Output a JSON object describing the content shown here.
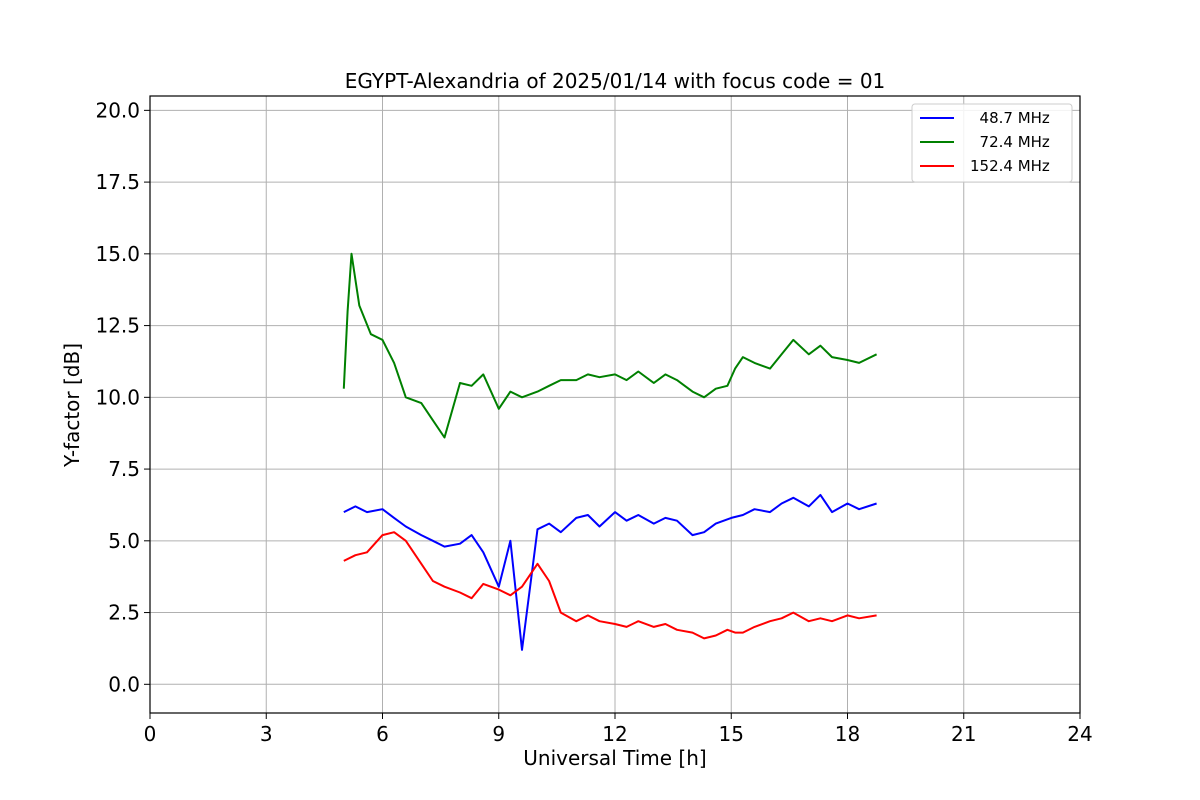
{
  "chart_data": {
    "type": "line",
    "title": "EGYPT-Alexandria of 2025/01/14 with focus code = 01",
    "xlabel": "Universal Time [h]",
    "ylabel": "Y-factor [dB]",
    "xlim": [
      0,
      24
    ],
    "ylim": [
      -1.0,
      20.5
    ],
    "xticks": [
      0,
      3,
      6,
      9,
      12,
      15,
      18,
      21,
      24
    ],
    "xtick_labels": [
      "0",
      "3",
      "6",
      "9",
      "12",
      "15",
      "18",
      "21",
      "24"
    ],
    "yticks": [
      0,
      2.5,
      5,
      7.5,
      10,
      12.5,
      15,
      17.5,
      20
    ],
    "ytick_labels": [
      "0.0",
      "2.5",
      "5.0",
      "7.5",
      "10.0",
      "12.5",
      "15.0",
      "17.5",
      "20.0"
    ],
    "grid": true,
    "legend_position": "top-right",
    "series": [
      {
        "name": "  48.7 MHz",
        "color": "#0000ff",
        "x": [
          5.0,
          5.3,
          5.6,
          6.0,
          6.3,
          6.6,
          7.0,
          7.3,
          7.6,
          8.0,
          8.3,
          8.6,
          9.0,
          9.3,
          9.6,
          10.0,
          10.3,
          10.6,
          11.0,
          11.3,
          11.6,
          12.0,
          12.3,
          12.6,
          13.0,
          13.3,
          13.6,
          14.0,
          14.3,
          14.6,
          15.0,
          15.3,
          15.6,
          16.0,
          16.3,
          16.6,
          17.0,
          17.3,
          17.6,
          18.0,
          18.3,
          18.75
        ],
        "y": [
          6.0,
          6.2,
          6.0,
          6.1,
          5.8,
          5.5,
          5.2,
          5.0,
          4.8,
          4.9,
          5.2,
          4.6,
          3.4,
          5.0,
          1.2,
          5.4,
          5.6,
          5.3,
          5.8,
          5.9,
          5.5,
          6.0,
          5.7,
          5.9,
          5.6,
          5.8,
          5.7,
          5.2,
          5.3,
          5.6,
          5.8,
          5.9,
          6.1,
          6.0,
          6.3,
          6.5,
          6.2,
          6.6,
          6.0,
          6.3,
          6.1,
          6.3
        ]
      },
      {
        "name": "  72.4 MHz",
        "color": "#008000",
        "x": [
          5.0,
          5.1,
          5.2,
          5.4,
          5.7,
          6.0,
          6.3,
          6.6,
          7.0,
          7.3,
          7.6,
          8.0,
          8.3,
          8.6,
          9.0,
          9.3,
          9.6,
          10.0,
          10.3,
          10.6,
          11.0,
          11.3,
          11.6,
          12.0,
          12.3,
          12.6,
          13.0,
          13.3,
          13.6,
          14.0,
          14.3,
          14.6,
          14.9,
          15.1,
          15.3,
          15.6,
          16.0,
          16.3,
          16.6,
          17.0,
          17.3,
          17.6,
          18.0,
          18.3,
          18.75
        ],
        "y": [
          10.3,
          13.0,
          15.0,
          13.2,
          12.2,
          12.0,
          11.2,
          10.0,
          9.8,
          9.2,
          8.6,
          10.5,
          10.4,
          10.8,
          9.6,
          10.2,
          10.0,
          10.2,
          10.4,
          10.6,
          10.6,
          10.8,
          10.7,
          10.8,
          10.6,
          10.9,
          10.5,
          10.8,
          10.6,
          10.2,
          10.0,
          10.3,
          10.4,
          11.0,
          11.4,
          11.2,
          11.0,
          11.5,
          12.0,
          11.5,
          11.8,
          11.4,
          11.3,
          11.2,
          11.5
        ]
      },
      {
        "name": "152.4 MHz",
        "color": "#ff0000",
        "x": [
          5.0,
          5.3,
          5.6,
          6.0,
          6.3,
          6.6,
          7.0,
          7.3,
          7.6,
          8.0,
          8.3,
          8.6,
          9.0,
          9.3,
          9.6,
          10.0,
          10.3,
          10.6,
          11.0,
          11.3,
          11.6,
          12.0,
          12.3,
          12.6,
          13.0,
          13.3,
          13.6,
          14.0,
          14.3,
          14.6,
          14.9,
          15.1,
          15.3,
          15.6,
          16.0,
          16.3,
          16.6,
          17.0,
          17.3,
          17.6,
          18.0,
          18.3,
          18.75
        ],
        "y": [
          4.3,
          4.5,
          4.6,
          5.2,
          5.3,
          5.0,
          4.2,
          3.6,
          3.4,
          3.2,
          3.0,
          3.5,
          3.3,
          3.1,
          3.4,
          4.2,
          3.6,
          2.5,
          2.2,
          2.4,
          2.2,
          2.1,
          2.0,
          2.2,
          2.0,
          2.1,
          1.9,
          1.8,
          1.6,
          1.7,
          1.9,
          1.8,
          1.8,
          2.0,
          2.2,
          2.3,
          2.5,
          2.2,
          2.3,
          2.2,
          2.4,
          2.3,
          2.4
        ]
      }
    ]
  }
}
